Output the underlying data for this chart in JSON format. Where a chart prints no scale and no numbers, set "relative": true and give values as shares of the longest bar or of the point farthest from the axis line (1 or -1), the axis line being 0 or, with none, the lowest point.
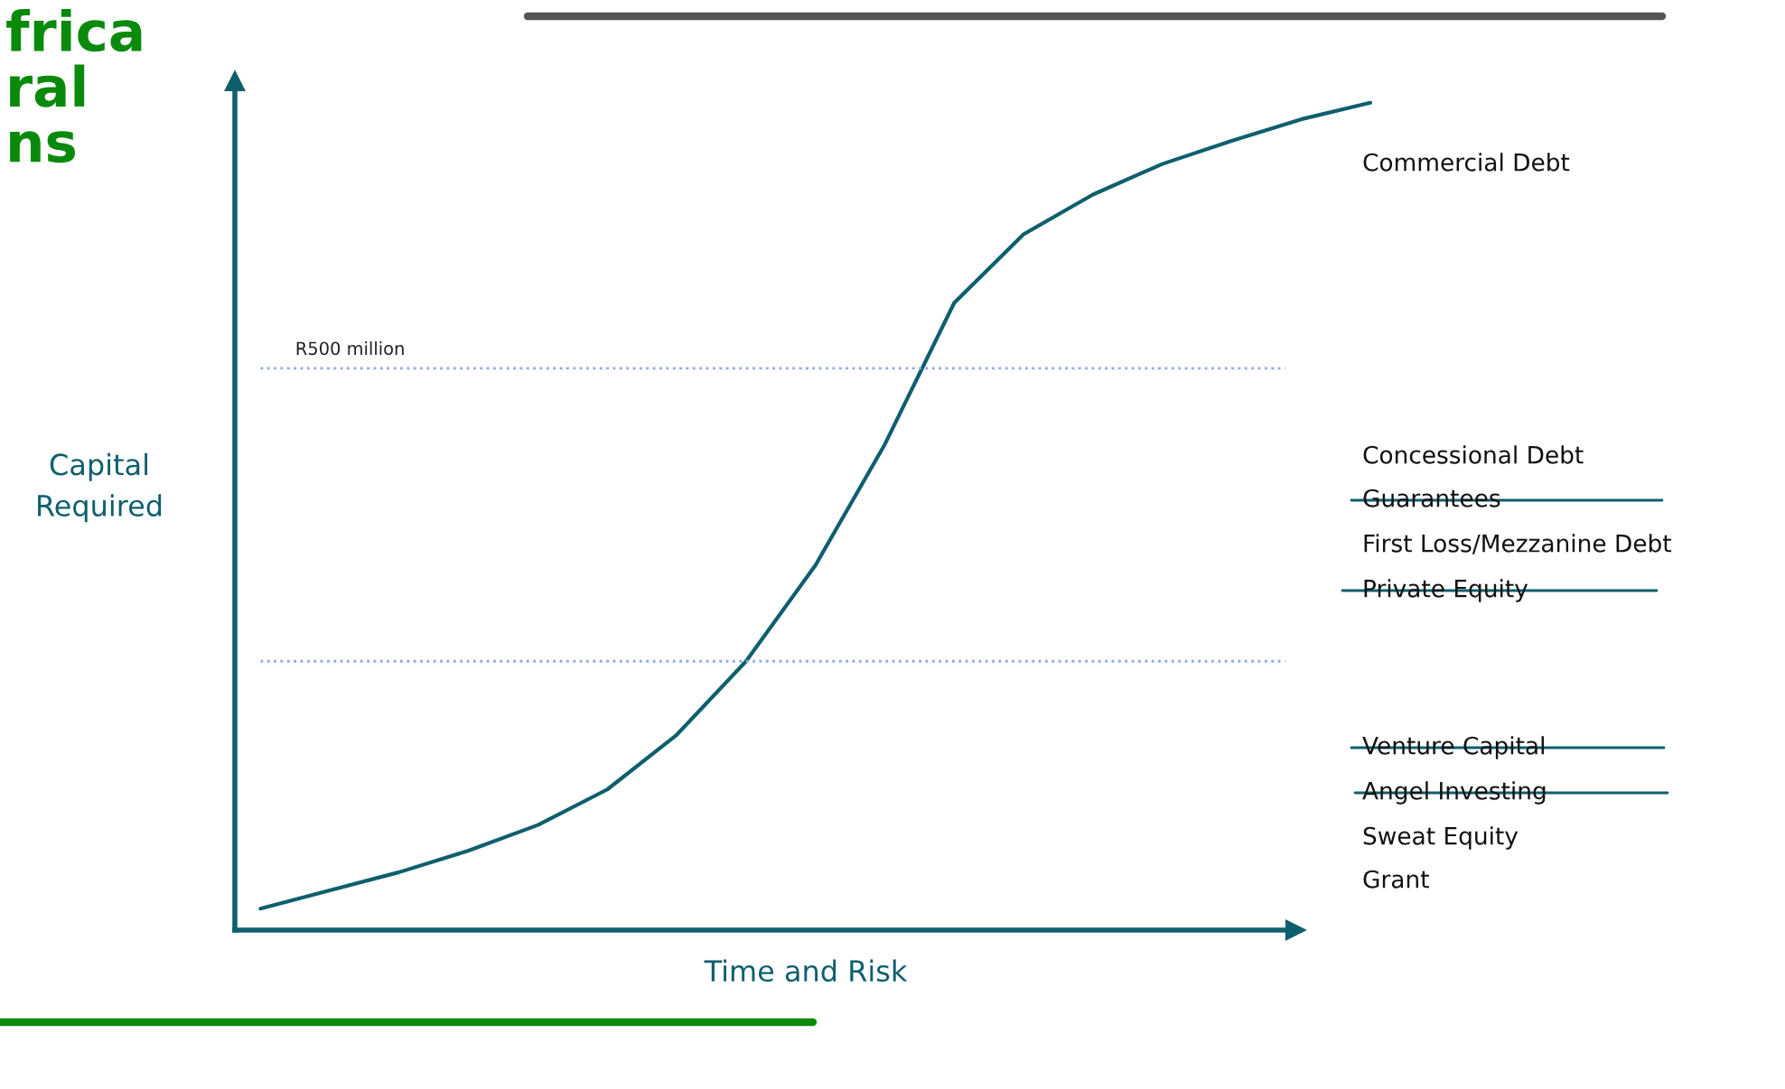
{
  "chart_data": {
    "type": "line",
    "title": "frica\nral\nns",
    "xlabel": "Time and Risk",
    "ylabel": "Capital\nRequired",
    "relative": true,
    "legend": false,
    "categories": [
      null,
      null,
      null,
      null,
      null,
      null,
      null,
      null,
      null,
      null,
      null,
      null,
      null,
      null,
      null,
      null,
      null
    ],
    "series": [
      {
        "color": "#0e5f6e",
        "values": [
          0.026,
          0.048,
          0.07,
          0.096,
          0.127,
          0.17,
          0.236,
          0.325,
          0.441,
          0.587,
          0.758,
          0.841,
          0.889,
          0.926,
          0.954,
          0.98,
          1.0
        ]
      }
    ],
    "ref_lines": [
      {
        "axis": "y",
        "value": 0.679,
        "label": "R500 million",
        "color": "#8faadc",
        "line_style": "dotted"
      },
      {
        "axis": "y",
        "value": 0.325,
        "label": null,
        "color": "#8faadc",
        "line_style": "dotted"
      }
    ],
    "annotations": [
      "Commercial Debt",
      "Concessional Debt",
      "Guarantees",
      "First Loss/Mezzanine Debt",
      "Private Equity",
      "Venture Capital",
      "Angel Investing",
      "Sweat Equity",
      "Grant"
    ]
  }
}
